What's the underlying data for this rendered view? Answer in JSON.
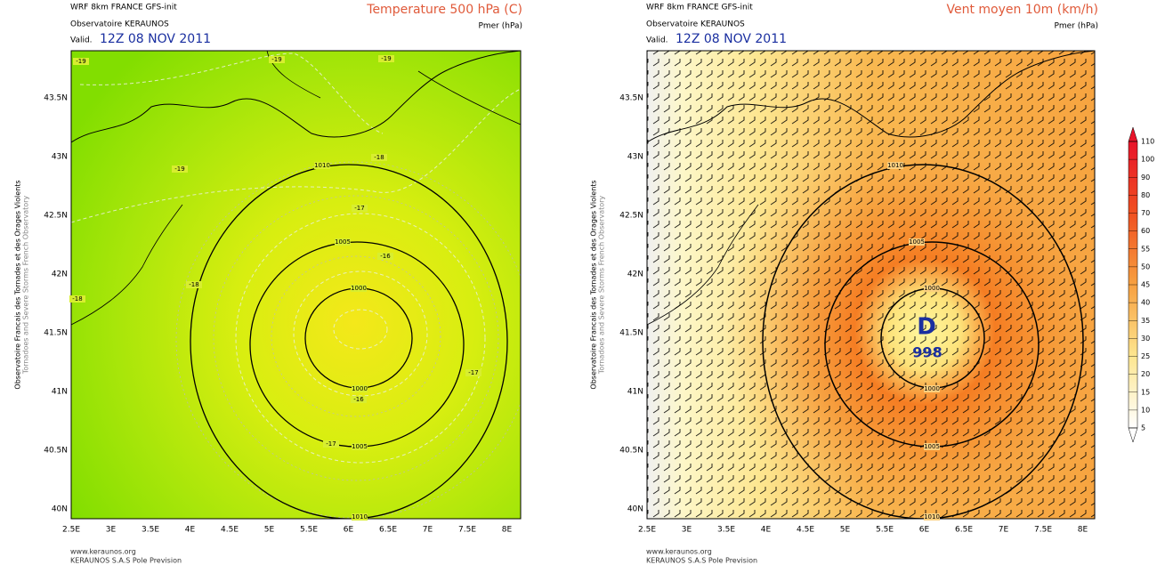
{
  "panels": [
    {
      "header": {
        "model": "WRF 8km FRANCE  GFS-init",
        "org": "Observatoire KERAUNOS",
        "valid_label": "Valid.",
        "valid_time": "12Z 08 NOV 2011",
        "title": "Temperature 500 hPa (C)",
        "subtitle": "Pmer (hPa)"
      },
      "side_text": [
        "Observatoire Francais des Tornades et des Orages Violents",
        "Tornadoes and Severe Storms French Observatory"
      ],
      "lat_labels": [
        "43.5N",
        "43N",
        "42.5N",
        "42N",
        "41.5N",
        "41N",
        "40.5N",
        "40N"
      ],
      "lon_labels": [
        "2.5E",
        "3E",
        "3.5E",
        "4E",
        "4.5E",
        "5E",
        "5.5E",
        "6E",
        "6.5E",
        "7E",
        "7.5E",
        "8E"
      ],
      "contour_labels": [
        "-19",
        "-19",
        "-19",
        "-19",
        "-18",
        "-17",
        "-16",
        "-18",
        "-18",
        "-17",
        "-16",
        "-17",
        "1010",
        "1005",
        "1000",
        "1000",
        "1005",
        "1010"
      ],
      "footer": [
        "www.keraunos.org",
        "KERAUNOS S.A.S Pole Prevision"
      ]
    },
    {
      "header": {
        "model": "WRF 8km FRANCE  GFS-init",
        "org": "Observatoire KERAUNOS",
        "valid_label": "Valid.",
        "valid_time": "12Z 08 NOV 2011",
        "title": "Vent moyen 10m (km/h)",
        "subtitle": "Pmer (hPa)"
      },
      "side_text": [
        "Observatoire Francais des Tornades et des Orages Violents",
        "Tornadoes and Severe Storms French Observatory"
      ],
      "lat_labels": [
        "43.5N",
        "43N",
        "42.5N",
        "42N",
        "41.5N",
        "41N",
        "40.5N",
        "40N"
      ],
      "lon_labels": [
        "2.5E",
        "3E",
        "3.5E",
        "4E",
        "4.5E",
        "5E",
        "5.5E",
        "6E",
        "6.5E",
        "7E",
        "7.5E",
        "8E"
      ],
      "contour_labels": [
        "1010",
        "1005",
        "1000",
        "1000",
        "1005",
        "1010"
      ],
      "low": {
        "letter": "D",
        "pressure": "998"
      },
      "legend": [
        110,
        100,
        90,
        80,
        70,
        60,
        55,
        50,
        45,
        40,
        35,
        30,
        25,
        20,
        15,
        10,
        5
      ],
      "footer": [
        "www.keraunos.org",
        "KERAUNOS S.A.S Pole Prevision"
      ]
    }
  ]
}
